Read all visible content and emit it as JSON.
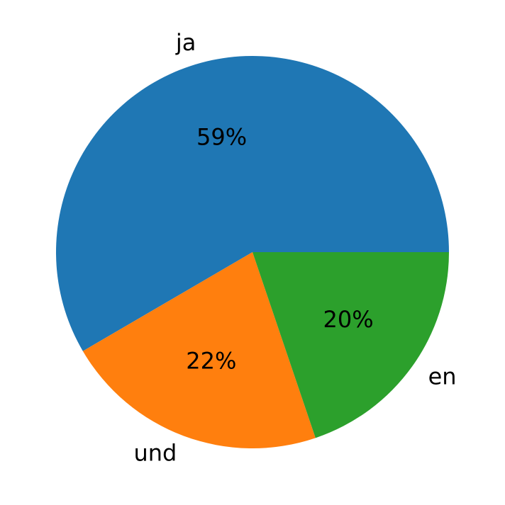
{
  "chart_data": {
    "type": "pie",
    "categories": [
      "ja",
      "und",
      "en"
    ],
    "values": [
      59,
      22,
      20
    ],
    "value_labels": [
      "59%",
      "22%",
      "20%"
    ],
    "colors": [
      "#1f77b4",
      "#ff7f0e",
      "#2ca02c"
    ]
  }
}
